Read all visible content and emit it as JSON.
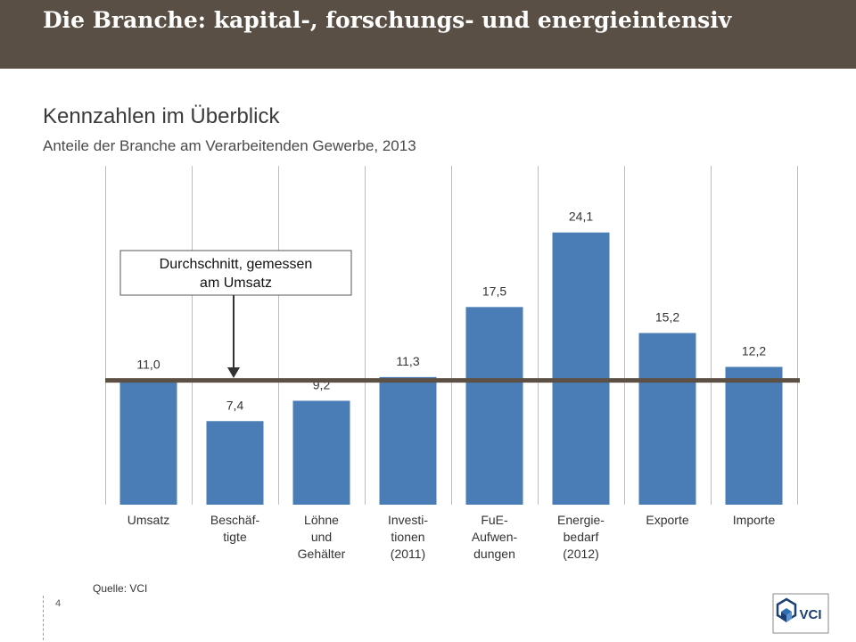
{
  "header": {
    "title": "Die Branche: kapital-, forschungs- und energieintensiv"
  },
  "subtitle": "Kennzahlen im Überblick",
  "subsubtitle": "Anteile der Branche am Verarbeitenden Gewerbe, 2013",
  "footer": {
    "source": "Quelle:  VCI",
    "page_number": "4",
    "logo_text": "VCI"
  },
  "colors": {
    "header_bg": "#594f45",
    "bar": "#4a7db5",
    "average_line": "#5c5045"
  },
  "chart_data": {
    "type": "bar",
    "title": "Anteile der Branche am Verarbeitenden Gewerbe, 2013",
    "categories": [
      [
        "Umsatz"
      ],
      [
        "Beschäf-",
        "tigte"
      ],
      [
        "Löhne",
        "und",
        "Gehälter"
      ],
      [
        "Investi-",
        "tionen",
        "(2011)"
      ],
      [
        "FuE-",
        "Aufwen-",
        "dungen"
      ],
      [
        "Energie-",
        "bedarf",
        "(2012)"
      ],
      [
        "Exporte"
      ],
      [
        "Importe"
      ]
    ],
    "values": [
      11.0,
      7.4,
      9.2,
      11.3,
      17.5,
      24.1,
      15.2,
      12.2
    ],
    "value_labels": [
      "11,0",
      "7,4",
      "9,2",
      "11,3",
      "17,5",
      "24,1",
      "15,2",
      "12,2"
    ],
    "ylim": [
      0,
      30
    ],
    "average_line": {
      "value": 11.0,
      "label": "Durchschnitt, gemessen am Umsatz",
      "label_lines": [
        "Durchschnitt, gemessen",
        "am Umsatz"
      ]
    },
    "grid": "vertical separators between categories",
    "xlabel": "",
    "ylabel": ""
  }
}
